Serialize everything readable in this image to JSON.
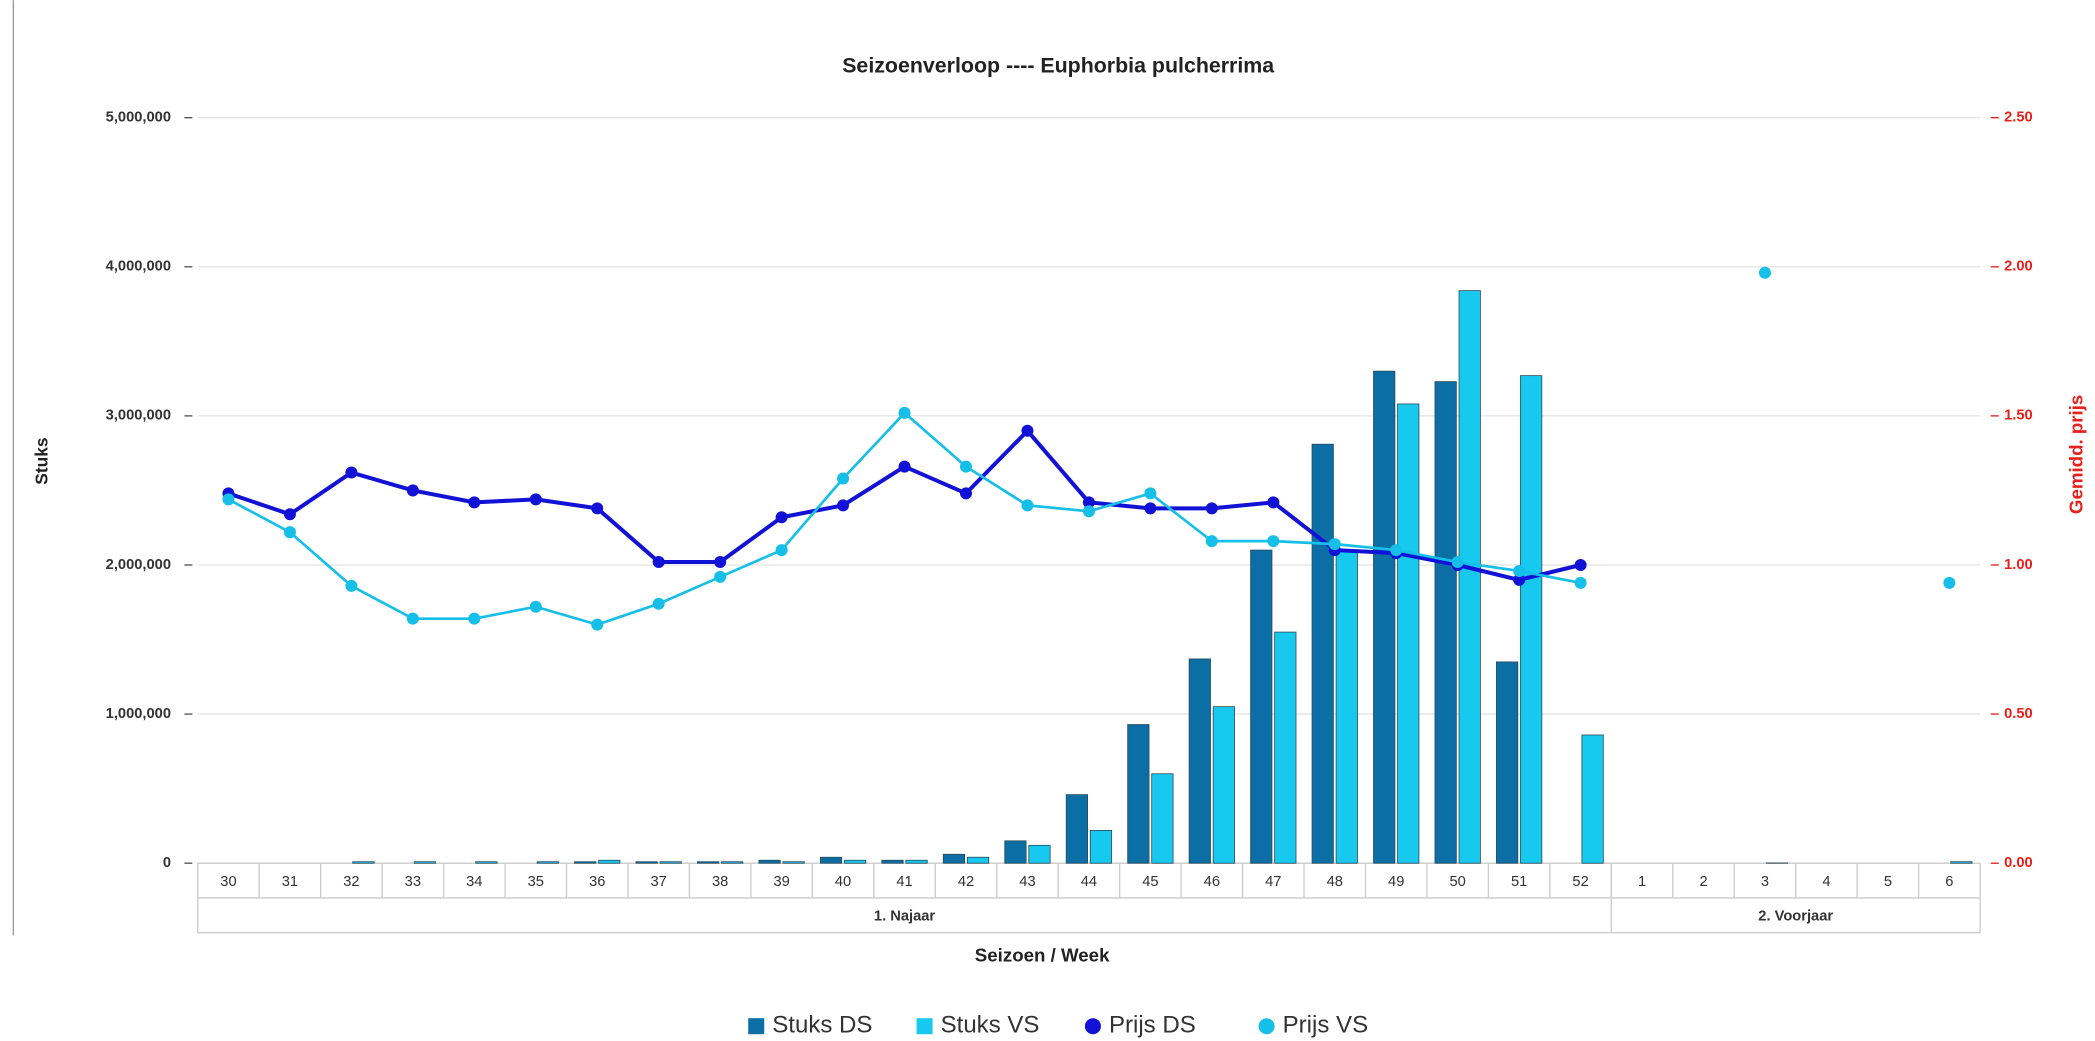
{
  "chart_data": {
    "type": "bar-line",
    "title": "Seizoenverloop ---- Euphorbia pulcherrima",
    "x_label": "Seizoen / Week",
    "y_label": "Stuks",
    "y2_label": "Gemidd. prijs",
    "categories": [
      "30",
      "31",
      "32",
      "33",
      "34",
      "35",
      "36",
      "37",
      "38",
      "39",
      "40",
      "41",
      "42",
      "43",
      "44",
      "45",
      "46",
      "47",
      "48",
      "49",
      "50",
      "51",
      "52",
      "1",
      "2",
      "3",
      "4",
      "5",
      "6"
    ],
    "groups": [
      {
        "label": "1. Najaar",
        "span": 23
      },
      {
        "label": "2. Voorjaar",
        "span": 6
      }
    ],
    "series": [
      {
        "name": "Stuks DS",
        "kind": "bar",
        "color": "#0b6fa6",
        "values": [
          0,
          0,
          0,
          0,
          0,
          0,
          10000,
          10000,
          10000,
          20000,
          40000,
          20000,
          60000,
          150000,
          460000,
          930000,
          1370000,
          2100000,
          2810000,
          3300000,
          3230000,
          1350000,
          0,
          0,
          0,
          0,
          0,
          0,
          0
        ]
      },
      {
        "name": "Stuks VS",
        "kind": "bar",
        "color": "#17c9ef",
        "values": [
          0,
          0,
          10000,
          10000,
          10000,
          10000,
          20000,
          10000,
          10000,
          10000,
          20000,
          20000,
          40000,
          120000,
          220000,
          600000,
          1050000,
          1550000,
          2100000,
          3080000,
          3840000,
          3270000,
          860000,
          0,
          0,
          2000,
          0,
          0,
          10000
        ]
      },
      {
        "name": "Prijs DS",
        "kind": "line",
        "axis": "y2",
        "color": "#1212d6",
        "values": [
          1.24,
          1.17,
          1.31,
          1.25,
          1.21,
          1.22,
          1.19,
          1.01,
          1.01,
          1.16,
          1.2,
          1.33,
          1.24,
          1.45,
          1.21,
          1.19,
          1.19,
          1.21,
          1.05,
          1.04,
          1.0,
          0.95,
          1.0,
          null,
          null,
          null,
          null,
          null,
          null
        ]
      },
      {
        "name": "Prijs VS",
        "kind": "line",
        "axis": "y2",
        "color": "#16bfe8",
        "values": [
          1.22,
          1.11,
          0.93,
          0.82,
          0.82,
          0.86,
          0.8,
          0.87,
          0.96,
          1.05,
          1.29,
          1.51,
          1.33,
          1.2,
          1.18,
          1.24,
          1.08,
          1.08,
          1.07,
          1.05,
          1.01,
          0.98,
          0.94,
          null,
          null,
          1.98,
          null,
          null,
          0.94
        ]
      }
    ],
    "ylim": [
      0,
      5000000
    ],
    "yticks": [
      0,
      {
        "value": 1000000,
        "label": "1,000,000"
      },
      {
        "value": 2000000,
        "label": "2,000,000"
      },
      {
        "value": 3000000,
        "label": "3,000,000"
      },
      {
        "value": 4000000,
        "label": "4,000,000"
      },
      {
        "value": 5000000,
        "label": "5,000,000"
      }
    ],
    "y2lim": [
      0,
      2.5
    ],
    "y2ticks": [
      {
        "value": 0,
        "label": "0.00"
      },
      {
        "value": 0.5,
        "label": "0.50"
      },
      {
        "value": 1,
        "label": "1.00"
      },
      {
        "value": 1.5,
        "label": "1.50"
      },
      {
        "value": 2,
        "label": "2.00"
      },
      {
        "value": 2.5,
        "label": "2.50"
      }
    ],
    "grid": true,
    "legend": "bottom"
  }
}
